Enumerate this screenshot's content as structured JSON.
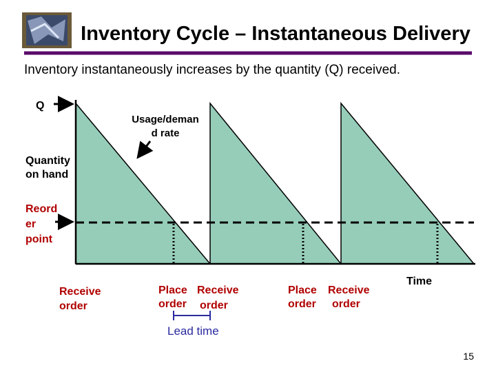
{
  "title": "Inventory Cycle – Instantaneous Delivery",
  "subtitle": "Inventory instantaneously increases by the quantity (Q) received.",
  "labels": {
    "q": "Q",
    "usage": [
      "Usage/deman",
      "d rate"
    ],
    "quantity": [
      "Quantity",
      "on hand"
    ],
    "reorder": [
      "Reord",
      "er",
      "point"
    ],
    "receive_first": [
      "Receive",
      "order"
    ],
    "cycle_2": {
      "place": [
        "Place",
        "order"
      ],
      "receive": [
        "Receive",
        "order"
      ]
    },
    "cycle_3": {
      "place": [
        "Place",
        "order"
      ],
      "receive": [
        "Receive",
        "order"
      ]
    },
    "time": "Time",
    "lead_time": "Lead time"
  },
  "page_number": "15"
}
